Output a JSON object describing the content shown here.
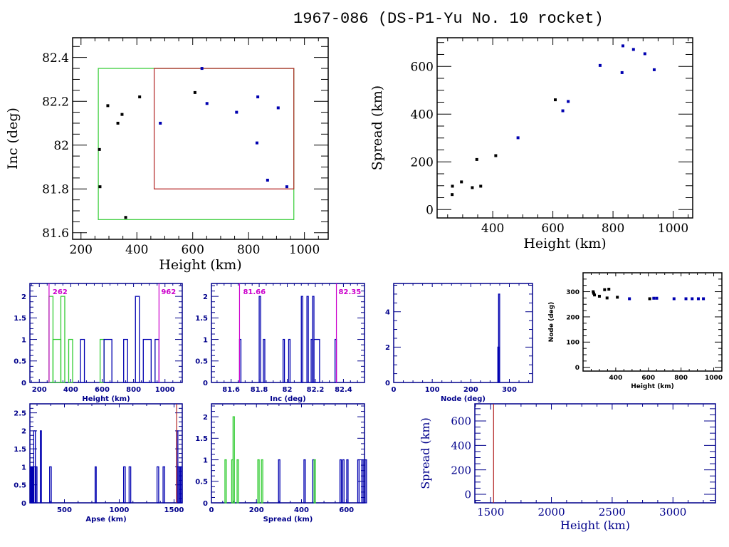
{
  "title": "1967-086 (DS-P1-Yu No. 10 rocket)",
  "colors": {
    "axis_black": "#000000",
    "axis_blue": "#00008b",
    "point_black": "#000000",
    "point_blue": "#0000b0",
    "green": "#33cc33",
    "red": "#b22222",
    "magenta": "#cc00cc"
  },
  "chart_data": [
    {
      "id": "height-inc",
      "type": "scatter",
      "xlabel": "Height (km)",
      "ylabel": "Inc (deg)",
      "xlim": [
        170,
        1085
      ],
      "ylim": [
        81.57,
        82.49
      ],
      "xticks": [
        200,
        400,
        600,
        800,
        1000
      ],
      "yticks": [
        81.6,
        81.8,
        82,
        82.2,
        82.4
      ],
      "ytick_labels": [
        "81.6",
        "81.8",
        "82",
        "82.2",
        "82.4"
      ],
      "boxes": [
        {
          "name": "green-box",
          "color": "green",
          "x": [
            262,
            962
          ],
          "y": [
            81.66,
            82.35
          ]
        },
        {
          "name": "red-box",
          "color": "red",
          "x": [
            462,
            962
          ],
          "y": [
            81.8,
            82.35
          ]
        }
      ],
      "points": [
        {
          "x": 266,
          "y": 81.98,
          "color": "black"
        },
        {
          "x": 268,
          "y": 81.81,
          "color": "black"
        },
        {
          "x": 296,
          "y": 82.18,
          "color": "black"
        },
        {
          "x": 332,
          "y": 82.1,
          "color": "black"
        },
        {
          "x": 347,
          "y": 82.14,
          "color": "black"
        },
        {
          "x": 360,
          "y": 81.67,
          "color": "black"
        },
        {
          "x": 410,
          "y": 82.22,
          "color": "black"
        },
        {
          "x": 484,
          "y": 82.1,
          "color": "blue"
        },
        {
          "x": 608,
          "y": 82.24,
          "color": "black"
        },
        {
          "x": 633,
          "y": 82.35,
          "color": "blue"
        },
        {
          "x": 651,
          "y": 82.19,
          "color": "blue"
        },
        {
          "x": 757,
          "y": 82.15,
          "color": "blue"
        },
        {
          "x": 830,
          "y": 82.01,
          "color": "blue"
        },
        {
          "x": 833,
          "y": 82.22,
          "color": "blue"
        },
        {
          "x": 868,
          "y": 81.84,
          "color": "blue"
        },
        {
          "x": 906,
          "y": 82.17,
          "color": "blue"
        },
        {
          "x": 937,
          "y": 81.81,
          "color": "blue"
        }
      ]
    },
    {
      "id": "height-spread",
      "type": "scatter",
      "xlabel": "Height (km)",
      "ylabel": "Spread (km)",
      "xlim": [
        215,
        1065
      ],
      "ylim": [
        -35,
        720
      ],
      "xticks": [
        400,
        600,
        800,
        1000
      ],
      "yticks": [
        0,
        200,
        400,
        600
      ],
      "ytick_labels": [
        "0",
        "200",
        "400",
        "600"
      ],
      "points": [
        {
          "x": 265,
          "y": 63,
          "color": "black"
        },
        {
          "x": 266,
          "y": 98,
          "color": "black"
        },
        {
          "x": 296,
          "y": 116,
          "color": "black"
        },
        {
          "x": 332,
          "y": 92,
          "color": "black"
        },
        {
          "x": 347,
          "y": 210,
          "color": "black"
        },
        {
          "x": 360,
          "y": 98,
          "color": "black"
        },
        {
          "x": 410,
          "y": 226,
          "color": "black"
        },
        {
          "x": 484,
          "y": 301,
          "color": "blue"
        },
        {
          "x": 608,
          "y": 460,
          "color": "black"
        },
        {
          "x": 633,
          "y": 414,
          "color": "blue"
        },
        {
          "x": 651,
          "y": 453,
          "color": "blue"
        },
        {
          "x": 757,
          "y": 604,
          "color": "blue"
        },
        {
          "x": 830,
          "y": 574,
          "color": "blue"
        },
        {
          "x": 833,
          "y": 686,
          "color": "blue"
        },
        {
          "x": 868,
          "y": 671,
          "color": "blue"
        },
        {
          "x": 906,
          "y": 653,
          "color": "blue"
        },
        {
          "x": 937,
          "y": 586,
          "color": "blue"
        }
      ]
    },
    {
      "id": "height-hist",
      "type": "bar",
      "xlabel": "Height (km)",
      "ylabel": "",
      "xlim": [
        140,
        1110
      ],
      "ylim": [
        0,
        2.3
      ],
      "xticks": [
        200,
        400,
        600,
        800,
        1000
      ],
      "yticks": [
        0,
        0.5,
        1,
        1.5,
        2
      ],
      "ytick_labels": [
        "0",
        "0.5",
        "1",
        "1.5",
        "2"
      ],
      "markers": [
        {
          "x": 262,
          "label": "262",
          "color": "magenta"
        },
        {
          "x": 962,
          "label": "962",
          "color": "magenta"
        }
      ],
      "bins": [
        {
          "x0": 262,
          "x1": 287,
          "v": 2,
          "color": "green"
        },
        {
          "x0": 287,
          "x1": 337,
          "v": 1,
          "color": "green"
        },
        {
          "x0": 337,
          "x1": 362,
          "v": 2,
          "color": "green"
        },
        {
          "x0": 387,
          "x1": 412,
          "v": 1,
          "color": "green"
        },
        {
          "x0": 462,
          "x1": 487,
          "v": 1,
          "color": "blue"
        },
        {
          "x0": 587,
          "x1": 612,
          "v": 1,
          "color": "green"
        },
        {
          "x0": 612,
          "x1": 662,
          "v": 1,
          "color": "blue"
        },
        {
          "x0": 737,
          "x1": 762,
          "v": 1,
          "color": "blue"
        },
        {
          "x0": 812,
          "x1": 837,
          "v": 2,
          "color": "blue"
        },
        {
          "x0": 862,
          "x1": 912,
          "v": 1,
          "color": "blue"
        },
        {
          "x0": 937,
          "x1": 962,
          "v": 1,
          "color": "blue"
        }
      ]
    },
    {
      "id": "inc-hist",
      "type": "bar",
      "xlabel": "Inc (deg)",
      "ylabel": "",
      "xlim": [
        81.46,
        82.55
      ],
      "ylim": [
        0,
        2.3
      ],
      "xticks": [
        81.6,
        81.8,
        82,
        82.2,
        82.4
      ],
      "xtick_labels": [
        "81.6",
        "81.8",
        "82",
        "82.2",
        "82.4"
      ],
      "yticks": [
        0,
        0.5,
        1,
        1.5,
        2
      ],
      "ytick_labels": [
        "0",
        "0.5",
        "1",
        "1.5",
        "2"
      ],
      "markers": [
        {
          "x": 81.66,
          "label": "81.66",
          "color": "magenta"
        },
        {
          "x": 82.35,
          "label": "82.35",
          "color": "magenta"
        }
      ],
      "bins": [
        {
          "x0": 81.66,
          "x1": 81.67,
          "v": 1,
          "color": "blue"
        },
        {
          "x0": 81.8,
          "x1": 81.81,
          "v": 2,
          "color": "blue"
        },
        {
          "x0": 81.83,
          "x1": 81.84,
          "v": 1,
          "color": "blue"
        },
        {
          "x0": 81.97,
          "x1": 81.98,
          "v": 1,
          "color": "blue"
        },
        {
          "x0": 82.01,
          "x1": 82.02,
          "v": 1,
          "color": "blue"
        },
        {
          "x0": 82.1,
          "x1": 82.11,
          "v": 2,
          "color": "blue"
        },
        {
          "x0": 82.14,
          "x1": 82.15,
          "v": 2,
          "color": "blue"
        },
        {
          "x0": 82.17,
          "x1": 82.18,
          "v": 1,
          "color": "blue"
        },
        {
          "x0": 82.18,
          "x1": 82.19,
          "v": 2,
          "color": "blue"
        },
        {
          "x0": 82.19,
          "x1": 82.23,
          "v": 1,
          "color": "blue"
        },
        {
          "x0": 82.34,
          "x1": 82.35,
          "v": 1,
          "color": "blue"
        }
      ]
    },
    {
      "id": "node-hist",
      "type": "bar",
      "xlabel": "Node (deg)",
      "ylabel": "",
      "xlim": [
        0,
        360
      ],
      "ylim": [
        0,
        5.6
      ],
      "xticks": [
        0,
        100,
        200,
        300
      ],
      "yticks": [
        0,
        2,
        4
      ],
      "ytick_labels": [
        "0",
        "2",
        "4"
      ],
      "bins": [
        {
          "x0": 270,
          "x1": 272,
          "v": 2,
          "color": "blue"
        },
        {
          "x0": 272,
          "x1": 274,
          "v": 5,
          "color": "blue"
        }
      ]
    },
    {
      "id": "height-node",
      "type": "scatter",
      "xlabel": "Height (km)",
      "ylabel": "Node (deg)",
      "xlim": [
        200,
        1050
      ],
      "ylim": [
        -15,
        375
      ],
      "xticks": [
        400,
        600,
        800,
        1000
      ],
      "yticks": [
        0,
        100,
        200,
        300
      ],
      "ytick_labels": [
        "0",
        "100",
        "200",
        "300"
      ],
      "points": [
        {
          "x": 262,
          "y": 300,
          "color": "black"
        },
        {
          "x": 265,
          "y": 294,
          "color": "black"
        },
        {
          "x": 270,
          "y": 287,
          "color": "black"
        },
        {
          "x": 300,
          "y": 282,
          "color": "black"
        },
        {
          "x": 332,
          "y": 308,
          "color": "black"
        },
        {
          "x": 347,
          "y": 275,
          "color": "black"
        },
        {
          "x": 358,
          "y": 310,
          "color": "black"
        },
        {
          "x": 410,
          "y": 278,
          "color": "black"
        },
        {
          "x": 484,
          "y": 272,
          "color": "blue"
        },
        {
          "x": 608,
          "y": 272,
          "color": "black"
        },
        {
          "x": 633,
          "y": 274,
          "color": "blue"
        },
        {
          "x": 651,
          "y": 274,
          "color": "blue"
        },
        {
          "x": 757,
          "y": 272,
          "color": "blue"
        },
        {
          "x": 830,
          "y": 272,
          "color": "blue"
        },
        {
          "x": 868,
          "y": 272,
          "color": "blue"
        },
        {
          "x": 906,
          "y": 272,
          "color": "blue"
        },
        {
          "x": 937,
          "y": 272,
          "color": "blue"
        }
      ]
    },
    {
      "id": "apse-hist",
      "type": "bar",
      "xlabel": "Apse (km)",
      "ylabel": "",
      "xlim": [
        185,
        1575
      ],
      "ylim": [
        0,
        2.75
      ],
      "xticks": [
        500,
        1000,
        1500
      ],
      "yticks": [
        0,
        0.5,
        1,
        1.5,
        2,
        2.5
      ],
      "ytick_labels": [
        "0",
        "0.5",
        "1",
        "1.5",
        "2",
        "2.5"
      ],
      "markers": [
        {
          "x": 1524,
          "label": "",
          "color": "red"
        }
      ],
      "bins": [
        {
          "x0": 188,
          "x1": 196,
          "v": 1,
          "color": "blue"
        },
        {
          "x0": 196,
          "x1": 204,
          "v": 1,
          "color": "blue"
        },
        {
          "x0": 204,
          "x1": 212,
          "v": 1,
          "color": "blue"
        },
        {
          "x0": 212,
          "x1": 220,
          "v": 1,
          "color": "blue"
        },
        {
          "x0": 220,
          "x1": 235,
          "v": 2,
          "color": "blue"
        },
        {
          "x0": 240,
          "x1": 248,
          "v": 1,
          "color": "blue"
        },
        {
          "x0": 280,
          "x1": 290,
          "v": 2,
          "color": "blue"
        },
        {
          "x0": 365,
          "x1": 380,
          "v": 1,
          "color": "blue"
        },
        {
          "x0": 780,
          "x1": 790,
          "v": 1,
          "color": "blue"
        },
        {
          "x0": 1040,
          "x1": 1055,
          "v": 1,
          "color": "blue"
        },
        {
          "x0": 1090,
          "x1": 1105,
          "v": 1,
          "color": "blue"
        },
        {
          "x0": 1345,
          "x1": 1360,
          "v": 1,
          "color": "blue"
        },
        {
          "x0": 1400,
          "x1": 1415,
          "v": 1,
          "color": "blue"
        },
        {
          "x0": 1522,
          "x1": 1535,
          "v": 2,
          "color": "blue"
        },
        {
          "x0": 1535,
          "x1": 1545,
          "v": 1,
          "color": "blue"
        },
        {
          "x0": 1550,
          "x1": 1560,
          "v": 1,
          "color": "blue"
        },
        {
          "x0": 1562,
          "x1": 1572,
          "v": 1,
          "color": "blue"
        }
      ]
    },
    {
      "id": "spread-hist",
      "type": "bar",
      "xlabel": "Spread (km)",
      "ylabel": "",
      "xlim": [
        0,
        680
      ],
      "ylim": [
        0,
        2.3
      ],
      "xticks": [
        0,
        200,
        400,
        600
      ],
      "yticks": [
        0,
        0.5,
        1,
        1.5,
        2
      ],
      "ytick_labels": [
        "0",
        "0.5",
        "1",
        "1.5",
        "2"
      ],
      "bins": [
        {
          "x0": 60,
          "x1": 66,
          "v": 1,
          "color": "green"
        },
        {
          "x0": 90,
          "x1": 96,
          "v": 1,
          "color": "green"
        },
        {
          "x0": 96,
          "x1": 102,
          "v": 2,
          "color": "green"
        },
        {
          "x0": 114,
          "x1": 120,
          "v": 1,
          "color": "green"
        },
        {
          "x0": 206,
          "x1": 212,
          "v": 1,
          "color": "green"
        },
        {
          "x0": 222,
          "x1": 228,
          "v": 1,
          "color": "green"
        },
        {
          "x0": 298,
          "x1": 304,
          "v": 1,
          "color": "blue"
        },
        {
          "x0": 411,
          "x1": 417,
          "v": 1,
          "color": "blue"
        },
        {
          "x0": 450,
          "x1": 456,
          "v": 1,
          "color": "blue"
        },
        {
          "x0": 456,
          "x1": 462,
          "v": 1,
          "color": "green"
        },
        {
          "x0": 571,
          "x1": 577,
          "v": 1,
          "color": "blue"
        },
        {
          "x0": 583,
          "x1": 589,
          "v": 1,
          "color": "blue"
        },
        {
          "x0": 601,
          "x1": 607,
          "v": 1,
          "color": "blue"
        },
        {
          "x0": 650,
          "x1": 656,
          "v": 1,
          "color": "blue"
        },
        {
          "x0": 668,
          "x1": 674,
          "v": 1,
          "color": "blue"
        },
        {
          "x0": 683,
          "x1": 689,
          "v": 1,
          "color": "blue"
        }
      ]
    },
    {
      "id": "height-spread-high",
      "type": "scatter",
      "xlabel": "Height (km)",
      "ylabel": "Spread (km)",
      "xlim": [
        1370,
        3350
      ],
      "ylim": [
        -70,
        740
      ],
      "xticks": [
        1500,
        2000,
        2500,
        3000
      ],
      "yticks": [
        0,
        200,
        400,
        600
      ],
      "ytick_labels": [
        "0",
        "200",
        "400",
        "600"
      ],
      "markers": [
        {
          "x": 1524,
          "label": "",
          "color": "red"
        }
      ],
      "points": []
    }
  ]
}
